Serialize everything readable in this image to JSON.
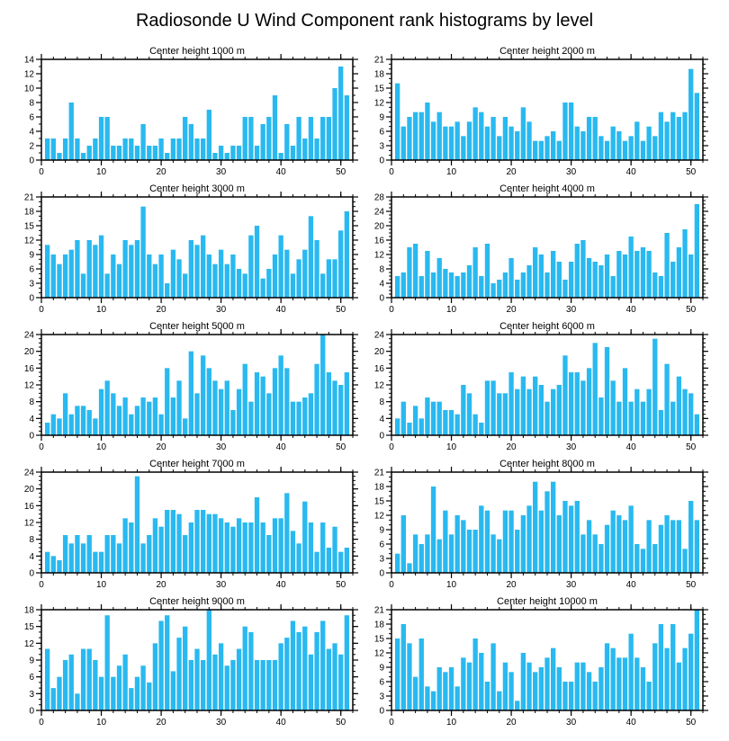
{
  "title": "Radiosonde U Wind Component rank histograms by level",
  "bar_color": "#29B9F0",
  "axis_color": "#000000",
  "chart_data": [
    {
      "type": "bar",
      "title": "Center height 1000 m",
      "ylim": [
        0,
        14
      ],
      "ytick_step": 2,
      "y_minor_step": 1,
      "xlim": [
        0,
        52
      ],
      "xticks": [
        0,
        10,
        20,
        30,
        40,
        50
      ],
      "x_minor_step": 2,
      "x_start_rank": 1,
      "values": [
        3,
        3,
        1,
        3,
        8,
        3,
        1,
        2,
        3,
        6,
        6,
        2,
        2,
        3,
        3,
        2,
        5,
        2,
        2,
        3,
        1,
        3,
        3,
        6,
        5,
        3,
        3,
        7,
        1,
        2,
        1,
        2,
        2,
        6,
        6,
        2,
        5,
        6,
        9,
        1,
        5,
        2,
        6,
        3,
        6,
        3,
        6,
        6,
        10,
        13,
        9
      ]
    },
    {
      "type": "bar",
      "title": "Center height 2000 m",
      "ylim": [
        0,
        21
      ],
      "ytick_step": 3,
      "y_minor_step": 1,
      "xlim": [
        0,
        52
      ],
      "xticks": [
        0,
        10,
        20,
        30,
        40,
        50
      ],
      "x_minor_step": 2,
      "x_start_rank": 1,
      "values": [
        16,
        7,
        9,
        10,
        10,
        12,
        8,
        10,
        7,
        7,
        8,
        5,
        8,
        11,
        10,
        7,
        9,
        5,
        9,
        7,
        6,
        11,
        8,
        4,
        4,
        5,
        6,
        4,
        12,
        12,
        7,
        6,
        9,
        9,
        5,
        4,
        7,
        6,
        4,
        5,
        8,
        4,
        7,
        5,
        10,
        8,
        10,
        9,
        10,
        19,
        14
      ]
    },
    {
      "type": "bar",
      "title": "Center height 3000 m",
      "ylim": [
        0,
        21
      ],
      "ytick_step": 3,
      "y_minor_step": 1,
      "xlim": [
        0,
        52
      ],
      "xticks": [
        0,
        10,
        20,
        30,
        40,
        50
      ],
      "x_minor_step": 2,
      "x_start_rank": 1,
      "values": [
        11,
        9,
        7,
        9,
        10,
        12,
        5,
        12,
        11,
        13,
        5,
        9,
        7,
        12,
        11,
        12,
        19,
        9,
        7,
        9,
        3,
        10,
        8,
        5,
        12,
        11,
        13,
        9,
        7,
        10,
        7,
        9,
        6,
        5,
        13,
        15,
        4,
        6,
        9,
        13,
        10,
        5,
        8,
        10,
        17,
        12,
        5,
        8,
        8,
        14,
        18
      ]
    },
    {
      "type": "bar",
      "title": "Center height 4000 m",
      "ylim": [
        0,
        28
      ],
      "ytick_step": 4,
      "y_minor_step": 1,
      "xlim": [
        0,
        52
      ],
      "xticks": [
        0,
        10,
        20,
        30,
        40,
        50
      ],
      "x_minor_step": 2,
      "x_start_rank": 1,
      "values": [
        6,
        7,
        14,
        15,
        6,
        13,
        7,
        11,
        8,
        7,
        6,
        7,
        9,
        14,
        6,
        15,
        4,
        5,
        7,
        11,
        5,
        7,
        9,
        14,
        12,
        7,
        13,
        10,
        5,
        10,
        15,
        16,
        11,
        10,
        9,
        12,
        6,
        13,
        12,
        17,
        13,
        14,
        13,
        7,
        6,
        18,
        10,
        14,
        19,
        12,
        26
      ]
    },
    {
      "type": "bar",
      "title": "Center height 5000 m",
      "ylim": [
        0,
        24
      ],
      "ytick_step": 4,
      "y_minor_step": 1,
      "xlim": [
        0,
        52
      ],
      "xticks": [
        0,
        10,
        20,
        30,
        40,
        50
      ],
      "x_minor_step": 2,
      "x_start_rank": 1,
      "values": [
        3,
        5,
        4,
        10,
        5,
        7,
        7,
        6,
        4,
        11,
        13,
        10,
        7,
        9,
        5,
        7,
        9,
        8,
        9,
        5,
        16,
        9,
        13,
        4,
        20,
        10,
        19,
        16,
        13,
        11,
        13,
        6,
        11,
        17,
        8,
        15,
        14,
        10,
        16,
        19,
        16,
        8,
        8,
        9,
        10,
        17,
        24,
        15,
        13,
        12,
        15
      ]
    },
    {
      "type": "bar",
      "title": "Center height 6000 m",
      "ylim": [
        0,
        24
      ],
      "ytick_step": 4,
      "y_minor_step": 1,
      "xlim": [
        0,
        52
      ],
      "xticks": [
        0,
        10,
        20,
        30,
        40,
        50
      ],
      "x_minor_step": 2,
      "x_start_rank": 1,
      "values": [
        4,
        8,
        3,
        7,
        4,
        9,
        8,
        8,
        6,
        6,
        5,
        12,
        10,
        5,
        3,
        13,
        13,
        10,
        10,
        15,
        11,
        14,
        11,
        14,
        12,
        8,
        11,
        12,
        19,
        15,
        15,
        13,
        16,
        22,
        9,
        21,
        13,
        8,
        16,
        8,
        11,
        8,
        11,
        23,
        6,
        17,
        8,
        14,
        11,
        10,
        5
      ]
    },
    {
      "type": "bar",
      "title": "Center height 7000 m",
      "ylim": [
        0,
        24
      ],
      "ytick_step": 4,
      "y_minor_step": 1,
      "xlim": [
        0,
        52
      ],
      "xticks": [
        0,
        10,
        20,
        30,
        40,
        50
      ],
      "x_minor_step": 2,
      "x_start_rank": 1,
      "values": [
        5,
        4,
        3,
        9,
        7,
        9,
        7,
        9,
        5,
        5,
        9,
        9,
        7,
        13,
        12,
        23,
        7,
        9,
        13,
        11,
        15,
        15,
        14,
        9,
        12,
        15,
        15,
        14,
        14,
        13,
        12,
        11,
        13,
        12,
        12,
        18,
        12,
        9,
        13,
        13,
        19,
        10,
        7,
        17,
        12,
        5,
        12,
        6,
        11,
        5,
        6
      ]
    },
    {
      "type": "bar",
      "title": "Center height 8000 m",
      "ylim": [
        0,
        21
      ],
      "ytick_step": 3,
      "y_minor_step": 1,
      "xlim": [
        0,
        52
      ],
      "xticks": [
        0,
        10,
        20,
        30,
        40,
        50
      ],
      "x_minor_step": 2,
      "x_start_rank": 1,
      "values": [
        4,
        12,
        2,
        8,
        6,
        8,
        18,
        7,
        13,
        8,
        12,
        11,
        9,
        9,
        14,
        13,
        8,
        7,
        13,
        13,
        9,
        12,
        14,
        19,
        13,
        17,
        19,
        12,
        15,
        14,
        15,
        8,
        11,
        8,
        6,
        10,
        13,
        12,
        11,
        14,
        6,
        5,
        11,
        6,
        10,
        12,
        11,
        11,
        5,
        15,
        11
      ]
    },
    {
      "type": "bar",
      "title": "Center height 9000 m",
      "ylim": [
        0,
        18
      ],
      "ytick_step": 3,
      "y_minor_step": 1,
      "xlim": [
        0,
        52
      ],
      "xticks": [
        0,
        10,
        20,
        30,
        40,
        50
      ],
      "x_minor_step": 2,
      "x_start_rank": 1,
      "values": [
        11,
        4,
        6,
        9,
        10,
        3,
        11,
        11,
        9,
        6,
        17,
        6,
        8,
        10,
        4,
        6,
        8,
        5,
        12,
        16,
        17,
        7,
        13,
        15,
        9,
        11,
        9,
        18,
        10,
        12,
        8,
        9,
        11,
        15,
        14,
        9,
        9,
        9,
        9,
        12,
        13,
        16,
        14,
        15,
        10,
        14,
        16,
        11,
        12,
        10,
        17
      ]
    },
    {
      "type": "bar",
      "title": "Center height 10000 m",
      "ylim": [
        0,
        21
      ],
      "ytick_step": 3,
      "y_minor_step": 1,
      "xlim": [
        0,
        52
      ],
      "xticks": [
        0,
        10,
        20,
        30,
        40,
        50
      ],
      "x_minor_step": 2,
      "x_start_rank": 1,
      "values": [
        15,
        18,
        14,
        7,
        15,
        5,
        4,
        9,
        8,
        9,
        5,
        11,
        10,
        15,
        12,
        6,
        14,
        4,
        10,
        8,
        2,
        12,
        10,
        8,
        9,
        11,
        13,
        9,
        6,
        6,
        10,
        10,
        8,
        6,
        9,
        14,
        13,
        11,
        11,
        16,
        11,
        9,
        6,
        14,
        18,
        13,
        18,
        10,
        13,
        16,
        21
      ]
    }
  ]
}
